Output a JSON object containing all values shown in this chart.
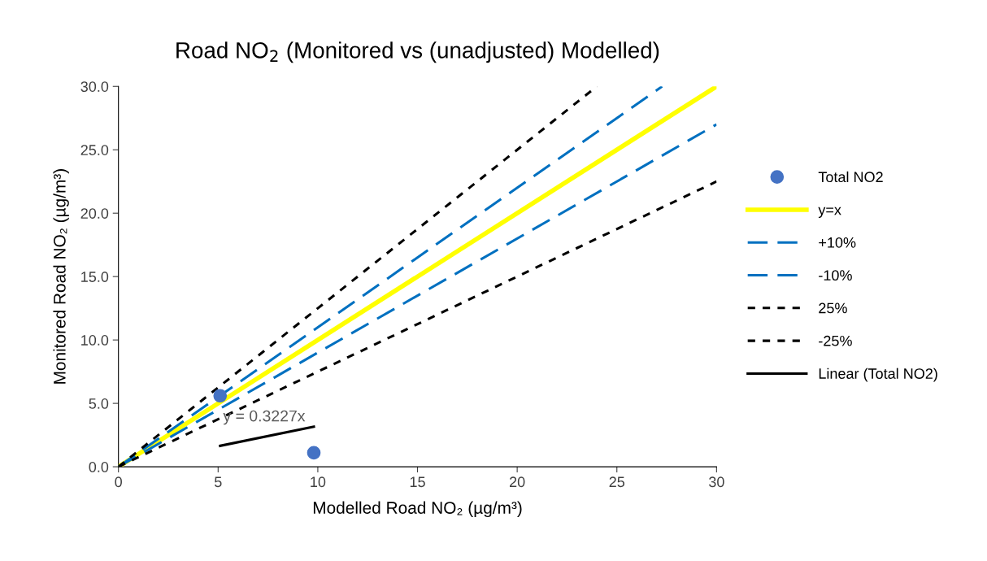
{
  "chart_data": {
    "type": "scatter",
    "title": "Road NO$_{2}$ (Monitored vs (unadjusted) Modelled)",
    "xlabel": "Modelled Road NO₂ (µg/m³)",
    "ylabel": "Monitored Road NO₂ (µg/m³)",
    "xlim": [
      0,
      30
    ],
    "xticks": [
      0,
      5,
      10,
      15,
      20,
      25,
      30
    ],
    "ylim": [
      0,
      30
    ],
    "yticks": [
      {
        "value": 0,
        "label": "0.0"
      },
      {
        "value": 5,
        "label": "5.0"
      },
      {
        "value": 10,
        "label": "10.0"
      },
      {
        "value": 15,
        "label": "15.0"
      },
      {
        "value": 20,
        "label": "20.0"
      },
      {
        "value": 25,
        "label": "25.0"
      },
      {
        "value": 30,
        "label": "30.0"
      }
    ],
    "grid": false,
    "legend": "right",
    "series": [
      {
        "name": "Total NO2",
        "marker": "circle",
        "color": "#4472c4",
        "x": [
          5.1,
          9.8
        ],
        "values": [
          5.6,
          1.1
        ]
      },
      {
        "name": "y=x",
        "type": "line",
        "line_style": "solid",
        "color": "#ffff00",
        "x": [
          0,
          30
        ],
        "values": [
          0,
          30
        ]
      },
      {
        "name": "+10%",
        "type": "line",
        "line_style": "dashed",
        "color": "#0070c0",
        "x": [
          0,
          27.27
        ],
        "values": [
          0,
          30
        ]
      },
      {
        "name": "-10%",
        "type": "line",
        "line_style": "dashed",
        "color": "#0070c0",
        "x": [
          0,
          30
        ],
        "values": [
          0,
          27
        ]
      },
      {
        "name": "25%",
        "type": "line",
        "line_style": "dotted",
        "color": "#000000",
        "x": [
          0,
          24
        ],
        "values": [
          0,
          30
        ]
      },
      {
        "name": "-25%",
        "type": "line",
        "line_style": "dotted",
        "color": "#000000",
        "x": [
          0,
          30
        ],
        "values": [
          0,
          22.5
        ]
      },
      {
        "name": "Linear (Total NO2)",
        "type": "line",
        "line_style": "solid",
        "color": "#000000",
        "x": [
          5.1,
          9.8
        ],
        "values": [
          1.65,
          3.16
        ]
      }
    ],
    "annotations": [
      "y = 0.3227x"
    ]
  }
}
